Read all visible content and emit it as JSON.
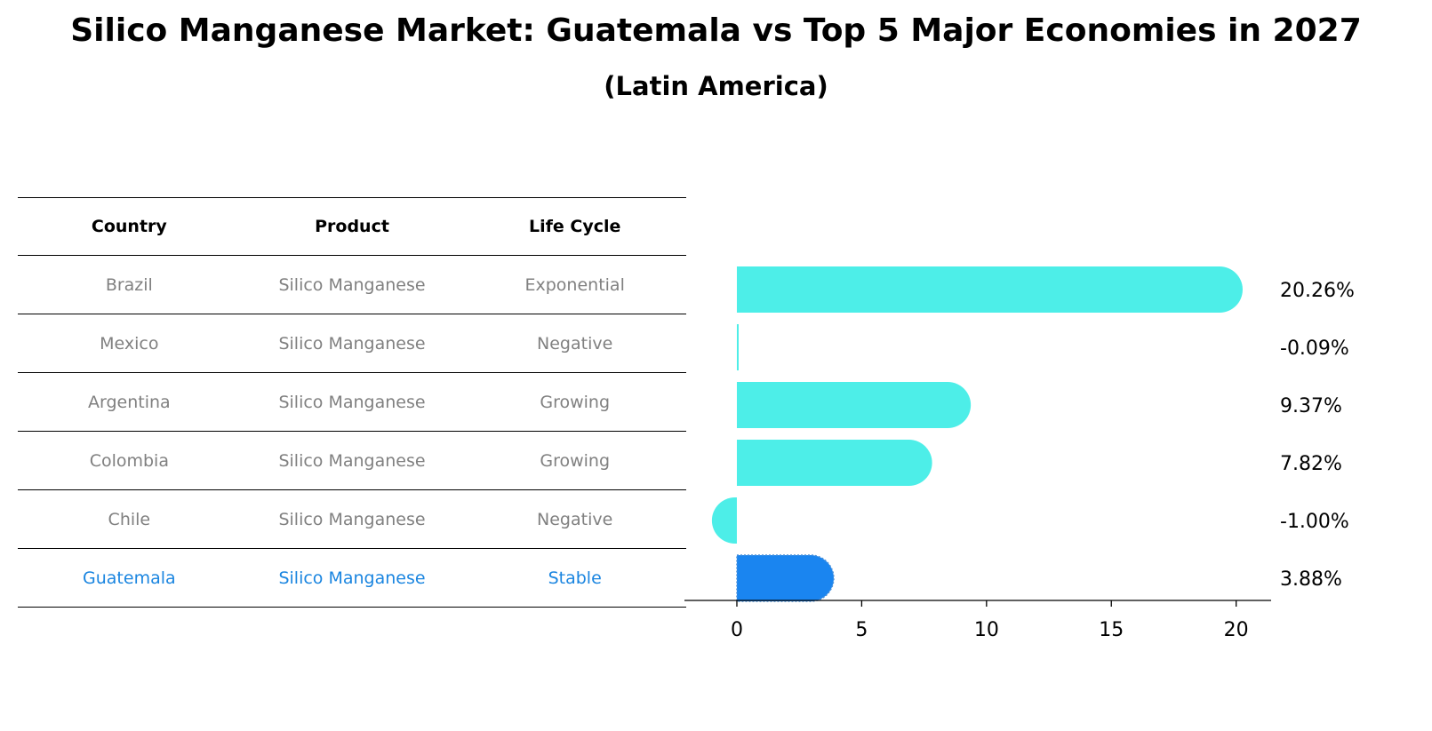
{
  "title": "Silico Manganese Market: Guatemala vs Top 5 Major Economies in 2027",
  "subtitle": "(Latin America)",
  "colors": {
    "bar": "#4deee8",
    "highlight": "#1a85f0",
    "highlight_text": "#1a85e0",
    "muted_text": "#808080"
  },
  "table": {
    "headers": [
      "Country",
      "Product",
      "Life Cycle"
    ],
    "rows": [
      {
        "country": "Brazil",
        "product": "Silico Manganese",
        "life_cycle": "Exponential"
      },
      {
        "country": "Mexico",
        "product": "Silico Manganese",
        "life_cycle": "Negative"
      },
      {
        "country": "Argentina",
        "product": "Silico Manganese",
        "life_cycle": "Growing"
      },
      {
        "country": "Colombia",
        "product": "Silico Manganese",
        "life_cycle": "Growing"
      },
      {
        "country": "Chile",
        "product": "Silico Manganese",
        "life_cycle": "Negative"
      },
      {
        "country": "Guatemala",
        "product": "Silico Manganese",
        "life_cycle": "Stable"
      }
    ]
  },
  "chart_data": {
    "type": "bar",
    "orientation": "horizontal",
    "categories": [
      "Brazil",
      "Mexico",
      "Argentina",
      "Colombia",
      "Chile",
      "Guatemala"
    ],
    "values": [
      20.26,
      -0.09,
      9.37,
      7.82,
      -1.0,
      3.88
    ],
    "value_labels": [
      "20.26%",
      "-0.09%",
      "9.37%",
      "7.82%",
      "-1.00%",
      "3.88%"
    ],
    "highlight_category": "Guatemala",
    "xlim": [
      -2.1,
      21.4
    ],
    "xticks": [
      0,
      5,
      10,
      15,
      20
    ],
    "xlabel": "",
    "ylabel": ""
  }
}
